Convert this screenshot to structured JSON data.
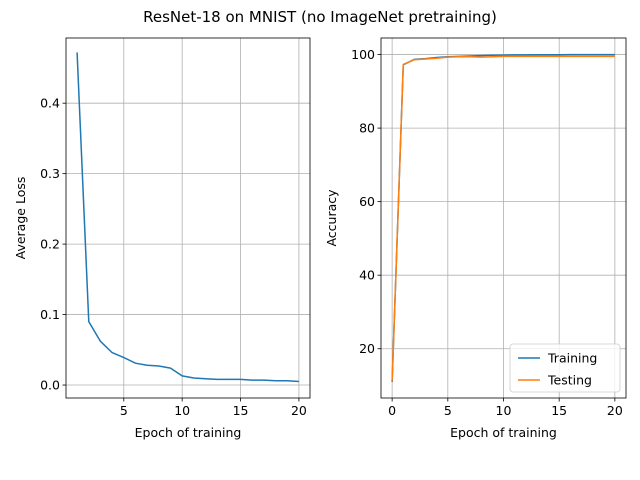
{
  "figure": {
    "title": "ResNet-18 on MNIST (no ImageNet pretraining)"
  },
  "chart_data": [
    {
      "type": "line",
      "xlabel": "Epoch of training",
      "ylabel": "Average Loss",
      "xlim": [
        0.05,
        20.95
      ],
      "ylim": [
        -0.0184,
        0.4925
      ],
      "xticks": [
        5,
        10,
        15,
        20
      ],
      "yticks": [
        0.0,
        0.1,
        0.2,
        0.3,
        0.4
      ],
      "ytick_labels": [
        "0.0",
        "0.1",
        "0.2",
        "0.3",
        "0.4"
      ],
      "grid": true,
      "series": [
        {
          "color": "#1f77b4",
          "x": [
            1,
            2,
            3,
            4,
            5,
            6,
            7,
            8,
            9,
            10,
            11,
            12,
            13,
            14,
            15,
            16,
            17,
            18,
            19,
            20
          ],
          "values": [
            0.472,
            0.09,
            0.062,
            0.046,
            0.039,
            0.031,
            0.028,
            0.027,
            0.024,
            0.013,
            0.01,
            0.009,
            0.008,
            0.008,
            0.008,
            0.007,
            0.007,
            0.006,
            0.006,
            0.005
          ]
        }
      ]
    },
    {
      "type": "line",
      "xlabel": "Epoch of training",
      "ylabel": "Accuracy",
      "xlim": [
        -1.0,
        21.0
      ],
      "ylim": [
        6.6,
        104.5
      ],
      "xticks": [
        0,
        5,
        10,
        15,
        20
      ],
      "yticks": [
        20,
        40,
        60,
        80,
        100
      ],
      "grid": true,
      "legend": "lower-right",
      "series": [
        {
          "name": "Training",
          "color": "#1f77b4",
          "x": [
            0,
            1,
            2,
            3,
            4,
            5,
            6,
            7,
            8,
            9,
            10,
            11,
            12,
            13,
            14,
            15,
            16,
            17,
            18,
            19,
            20
          ],
          "values": [
            11.0,
            97.2,
            98.7,
            98.9,
            99.2,
            99.4,
            99.5,
            99.6,
            99.7,
            99.8,
            99.85,
            99.9,
            99.9,
            99.95,
            99.95,
            99.96,
            99.97,
            99.98,
            99.98,
            99.99,
            99.99
          ]
        },
        {
          "name": "Testing",
          "color": "#ff7f0e",
          "x": [
            0,
            1,
            2,
            3,
            4,
            5,
            6,
            7,
            8,
            9,
            10,
            11,
            12,
            13,
            14,
            15,
            16,
            17,
            18,
            19,
            20
          ],
          "values": [
            11.3,
            97.3,
            98.6,
            98.8,
            99.0,
            99.3,
            99.4,
            99.4,
            99.3,
            99.4,
            99.5,
            99.5,
            99.5,
            99.5,
            99.5,
            99.5,
            99.5,
            99.5,
            99.5,
            99.5,
            99.5
          ]
        }
      ]
    }
  ]
}
